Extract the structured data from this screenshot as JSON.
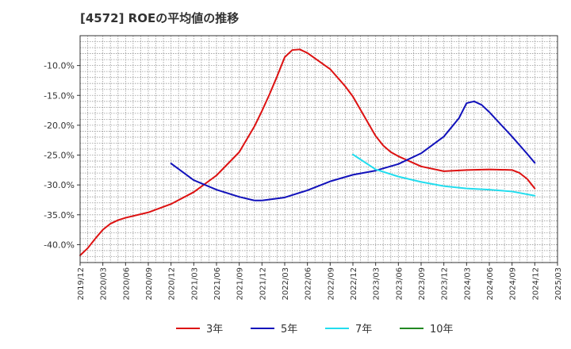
{
  "chart_data": {
    "type": "line",
    "title": "[4572]  ROEの平均値の推移",
    "xlabel": "",
    "ylabel": "",
    "ylim": [
      -43,
      -5
    ],
    "yticks": [
      -40,
      -35,
      -30,
      -25,
      -20,
      -15,
      -10
    ],
    "ytick_labels": [
      "-40.0%",
      "-35.0%",
      "-30.0%",
      "-25.0%",
      "-20.0%",
      "-15.0%",
      "-10.0%"
    ],
    "x_start": "2019/12",
    "x_end": "2025/03",
    "xtick_labels": [
      "2019/12",
      "2020/03",
      "2020/06",
      "2020/09",
      "2020/12",
      "2021/03",
      "2021/06",
      "2021/09",
      "2021/12",
      "2022/03",
      "2022/06",
      "2022/09",
      "2022/12",
      "2023/03",
      "2023/06",
      "2023/09",
      "2023/12",
      "2024/03",
      "2024/06",
      "2024/09",
      "2024/12",
      "2025/03"
    ],
    "grid": true,
    "legend_position": "bottom",
    "series": [
      {
        "name": "3年",
        "color": "#dd1111",
        "points": [
          [
            "2019/12",
            -41.8
          ],
          [
            "2020/01",
            -40.6
          ],
          [
            "2020/02",
            -39.0
          ],
          [
            "2020/03",
            -37.5
          ],
          [
            "2020/04",
            -36.5
          ],
          [
            "2020/05",
            -35.9
          ],
          [
            "2020/06",
            -35.5
          ],
          [
            "2020/09",
            -34.6
          ],
          [
            "2020/12",
            -33.2
          ],
          [
            "2021/03",
            -31.2
          ],
          [
            "2021/06",
            -28.4
          ],
          [
            "2021/09",
            -24.5
          ],
          [
            "2021/11",
            -20.2
          ],
          [
            "2021/12",
            -17.6
          ],
          [
            "2022/01",
            -14.8
          ],
          [
            "2022/02",
            -11.8
          ],
          [
            "2022/03",
            -8.6
          ],
          [
            "2022/04",
            -7.4
          ],
          [
            "2022/05",
            -7.3
          ],
          [
            "2022/06",
            -7.9
          ],
          [
            "2022/09",
            -10.6
          ],
          [
            "2022/11",
            -13.5
          ],
          [
            "2022/12",
            -15.2
          ],
          [
            "2023/03",
            -21.8
          ],
          [
            "2023/04",
            -23.4
          ],
          [
            "2023/05",
            -24.5
          ],
          [
            "2023/06",
            -25.2
          ],
          [
            "2023/09",
            -26.9
          ],
          [
            "2023/12",
            -27.7
          ],
          [
            "2024/03",
            -27.5
          ],
          [
            "2024/06",
            -27.4
          ],
          [
            "2024/09",
            -27.5
          ],
          [
            "2024/10",
            -28.0
          ],
          [
            "2024/11",
            -29.0
          ],
          [
            "2024/12",
            -30.6
          ]
        ]
      },
      {
        "name": "5年",
        "color": "#1111bb",
        "points": [
          [
            "2020/12",
            -26.4
          ],
          [
            "2021/03",
            -29.2
          ],
          [
            "2021/06",
            -30.8
          ],
          [
            "2021/09",
            -32.0
          ],
          [
            "2021/11",
            -32.6
          ],
          [
            "2021/12",
            -32.6
          ],
          [
            "2022/03",
            -32.1
          ],
          [
            "2022/06",
            -30.9
          ],
          [
            "2022/09",
            -29.4
          ],
          [
            "2022/12",
            -28.3
          ],
          [
            "2023/03",
            -27.6
          ],
          [
            "2023/06",
            -26.5
          ],
          [
            "2023/09",
            -24.7
          ],
          [
            "2023/12",
            -21.9
          ],
          [
            "2024/02",
            -18.8
          ],
          [
            "2024/03",
            -16.3
          ],
          [
            "2024/04",
            -16.0
          ],
          [
            "2024/05",
            -16.6
          ],
          [
            "2024/06",
            -17.8
          ],
          [
            "2024/09",
            -21.9
          ],
          [
            "2024/11",
            -24.8
          ],
          [
            "2024/12",
            -26.3
          ]
        ]
      },
      {
        "name": "7年",
        "color": "#22ddee",
        "points": [
          [
            "2022/12",
            -24.9
          ],
          [
            "2023/03",
            -27.4
          ],
          [
            "2023/06",
            -28.6
          ],
          [
            "2023/09",
            -29.5
          ],
          [
            "2023/12",
            -30.2
          ],
          [
            "2024/03",
            -30.6
          ],
          [
            "2024/06",
            -30.8
          ],
          [
            "2024/09",
            -31.1
          ],
          [
            "2024/12",
            -31.8
          ]
        ]
      },
      {
        "name": "10年",
        "color": "#228822",
        "points": []
      }
    ]
  }
}
